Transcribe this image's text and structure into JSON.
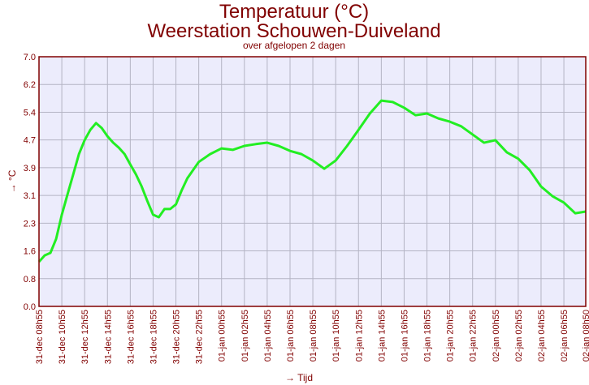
{
  "chart_data": {
    "type": "line",
    "title": "Temperatuur (°C)",
    "subtitle": "Weerstation Schouwen-Duiveland",
    "note": "over afgelopen 2 dagen",
    "x_label": "→ Tijd",
    "y_label": "→ °C",
    "color": "#22ee22",
    "grid": true,
    "xlim": [
      0,
      47.917
    ],
    "ylim": [
      0,
      7
    ],
    "yticks": [
      {
        "value": 0,
        "label": "0.0"
      },
      {
        "value": 0.778,
        "label": "0.8"
      },
      {
        "value": 1.556,
        "label": "1.6"
      },
      {
        "value": 2.333,
        "label": "2.3"
      },
      {
        "value": 3.111,
        "label": "3.1"
      },
      {
        "value": 3.889,
        "label": "3.9"
      },
      {
        "value": 4.667,
        "label": "4.7"
      },
      {
        "value": 5.444,
        "label": "5.4"
      },
      {
        "value": 6.222,
        "label": "6.2"
      },
      {
        "value": 7,
        "label": "7.0"
      }
    ],
    "xticks": [
      {
        "value": 0,
        "label": "31-dec 08h55"
      },
      {
        "value": 2,
        "label": "31-dec 10h55"
      },
      {
        "value": 4,
        "label": "31-dec 12h55"
      },
      {
        "value": 6,
        "label": "31-dec 14h55"
      },
      {
        "value": 8,
        "label": "31-dec 16h55"
      },
      {
        "value": 10,
        "label": "31-dec 18h55"
      },
      {
        "value": 12,
        "label": "31-dec 20h55"
      },
      {
        "value": 14,
        "label": "31-dec 22h55"
      },
      {
        "value": 16,
        "label": "01-jan 00h55"
      },
      {
        "value": 18,
        "label": "01-jan 02h55"
      },
      {
        "value": 20,
        "label": "01-jan 04h55"
      },
      {
        "value": 22,
        "label": "01-jan 06h55"
      },
      {
        "value": 24,
        "label": "01-jan 08h55"
      },
      {
        "value": 26,
        "label": "01-jan 10h55"
      },
      {
        "value": 28,
        "label": "01-jan 12h55"
      },
      {
        "value": 30,
        "label": "01-jan 14h55"
      },
      {
        "value": 32,
        "label": "01-jan 16h55"
      },
      {
        "value": 34,
        "label": "01-jan 18h55"
      },
      {
        "value": 36,
        "label": "01-jan 20h55"
      },
      {
        "value": 38,
        "label": "01-jan 22h55"
      },
      {
        "value": 40,
        "label": "02-jan 00h55"
      },
      {
        "value": 42,
        "label": "02-jan 02h55"
      },
      {
        "value": 44,
        "label": "02-jan 04h55"
      },
      {
        "value": 46,
        "label": "02-jan 06h55"
      },
      {
        "value": 47.917,
        "label": "02-jan 08h50"
      }
    ],
    "x": [
      0,
      0.5,
      1,
      1.5,
      2,
      2.5,
      3,
      3.5,
      4,
      4.5,
      5,
      5.5,
      6,
      6.5,
      7,
      7.5,
      8,
      8.5,
      9,
      9.5,
      10,
      10.5,
      11,
      11.5,
      12,
      12.5,
      13,
      14,
      15,
      16,
      17,
      18,
      19,
      20,
      21,
      22,
      23,
      24,
      25,
      26,
      27,
      28,
      29,
      30,
      31,
      32,
      33,
      34,
      35,
      36,
      37,
      38,
      39,
      40,
      41,
      42,
      43,
      44,
      45,
      46,
      47,
      47.917
    ],
    "values": [
      1.25,
      1.43,
      1.5,
      1.89,
      2.57,
      3.14,
      3.7,
      4.27,
      4.66,
      4.95,
      5.14,
      5.0,
      4.77,
      4.59,
      4.45,
      4.27,
      3.98,
      3.7,
      3.36,
      2.95,
      2.57,
      2.5,
      2.73,
      2.73,
      2.86,
      3.25,
      3.59,
      4.05,
      4.27,
      4.43,
      4.39,
      4.5,
      4.55,
      4.59,
      4.5,
      4.36,
      4.27,
      4.09,
      3.86,
      4.09,
      4.5,
      4.95,
      5.41,
      5.77,
      5.73,
      5.57,
      5.36,
      5.41,
      5.27,
      5.18,
      5.05,
      4.82,
      4.59,
      4.66,
      4.32,
      4.14,
      3.82,
      3.36,
      3.09,
      2.91,
      2.61,
      2.66
    ]
  }
}
